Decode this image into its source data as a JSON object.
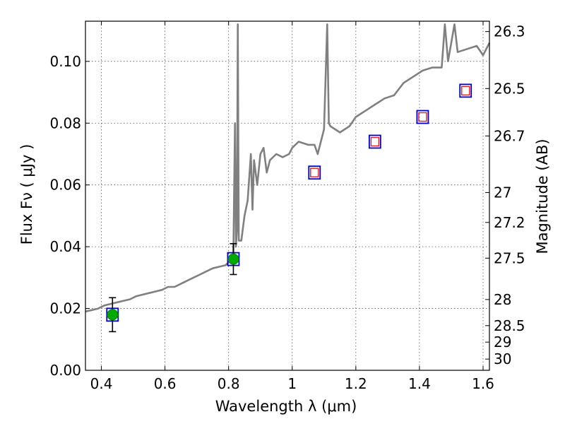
{
  "chart_data": {
    "type": "scatter",
    "title": "",
    "xlabel": "Wavelength  λ (μm)",
    "ylabel": "Flux  Fν  ( μJy )",
    "y2label": "Magnitude (AB)",
    "xlim": [
      0.35,
      1.62
    ],
    "ylim": [
      0.0,
      0.113
    ],
    "grid": true,
    "x_ticks": [
      0.4,
      0.6,
      0.8,
      1.0,
      1.2,
      1.4,
      1.6
    ],
    "x_tick_labels": [
      "0.4",
      "0.6",
      "0.8",
      "1",
      "1.2",
      "1.4",
      "1.6"
    ],
    "y_ticks": [
      0.0,
      0.02,
      0.04,
      0.06,
      0.08,
      0.1
    ],
    "y_tick_labels": [
      "0.00",
      "0.02",
      "0.04",
      "0.06",
      "0.08",
      "0.10"
    ],
    "mag_ticks": [
      26.3,
      26.5,
      26.7,
      27,
      27.2,
      27.5,
      28,
      28.5,
      29,
      30
    ],
    "mag_tick_labels": [
      "26.3",
      "26.5",
      "26.7",
      "27",
      "27.2",
      "27.5",
      "28",
      "28.5",
      "29",
      "30"
    ],
    "series": [
      {
        "kind": "line",
        "color": "#808080",
        "points": [
          [
            0.35,
            0.019
          ],
          [
            0.37,
            0.0195
          ],
          [
            0.39,
            0.02
          ],
          [
            0.41,
            0.021
          ],
          [
            0.43,
            0.0215
          ],
          [
            0.45,
            0.022
          ],
          [
            0.47,
            0.0225
          ],
          [
            0.49,
            0.023
          ],
          [
            0.51,
            0.024
          ],
          [
            0.53,
            0.0245
          ],
          [
            0.55,
            0.025
          ],
          [
            0.57,
            0.0255
          ],
          [
            0.59,
            0.026
          ],
          [
            0.61,
            0.027
          ],
          [
            0.63,
            0.027
          ],
          [
            0.65,
            0.028
          ],
          [
            0.67,
            0.029
          ],
          [
            0.69,
            0.03
          ],
          [
            0.71,
            0.031
          ],
          [
            0.73,
            0.032
          ],
          [
            0.75,
            0.033
          ],
          [
            0.77,
            0.0335
          ],
          [
            0.79,
            0.034
          ],
          [
            0.8,
            0.035
          ],
          [
            0.81,
            0.036
          ],
          [
            0.815,
            0.037
          ],
          [
            0.82,
            0.08
          ],
          [
            0.823,
            0.04
          ],
          [
            0.826,
            0.045
          ],
          [
            0.829,
            0.112
          ],
          [
            0.832,
            0.042
          ],
          [
            0.84,
            0.042
          ],
          [
            0.85,
            0.05
          ],
          [
            0.86,
            0.055
          ],
          [
            0.87,
            0.07
          ],
          [
            0.875,
            0.052
          ],
          [
            0.88,
            0.068
          ],
          [
            0.89,
            0.06
          ],
          [
            0.9,
            0.07
          ],
          [
            0.91,
            0.072
          ],
          [
            0.92,
            0.064
          ],
          [
            0.93,
            0.068
          ],
          [
            0.95,
            0.07
          ],
          [
            0.97,
            0.069
          ],
          [
            0.99,
            0.07
          ],
          [
            1.0,
            0.072
          ],
          [
            1.02,
            0.074
          ],
          [
            1.05,
            0.073
          ],
          [
            1.07,
            0.073
          ],
          [
            1.08,
            0.07
          ],
          [
            1.1,
            0.078
          ],
          [
            1.11,
            0.112
          ],
          [
            1.115,
            0.08
          ],
          [
            1.12,
            0.079
          ],
          [
            1.15,
            0.077
          ],
          [
            1.18,
            0.079
          ],
          [
            1.2,
            0.082
          ],
          [
            1.23,
            0.084
          ],
          [
            1.26,
            0.086
          ],
          [
            1.29,
            0.088
          ],
          [
            1.32,
            0.089
          ],
          [
            1.35,
            0.093
          ],
          [
            1.38,
            0.095
          ],
          [
            1.41,
            0.097
          ],
          [
            1.44,
            0.098
          ],
          [
            1.47,
            0.098
          ],
          [
            1.48,
            0.112
          ],
          [
            1.49,
            0.1
          ],
          [
            1.51,
            0.112
          ],
          [
            1.52,
            0.103
          ],
          [
            1.55,
            0.104
          ],
          [
            1.58,
            0.105
          ],
          [
            1.6,
            0.102
          ],
          [
            1.62,
            0.106
          ]
        ]
      },
      {
        "kind": "model_squares",
        "color": "#0000cc",
        "points": [
          [
            0.435,
            0.018
          ],
          [
            0.815,
            0.036
          ],
          [
            1.07,
            0.064
          ],
          [
            1.26,
            0.074
          ],
          [
            1.41,
            0.082
          ],
          [
            1.545,
            0.0905
          ]
        ]
      },
      {
        "kind": "observed_points",
        "color": "#00aa00",
        "points": [
          [
            0.435,
            0.018
          ],
          [
            0.815,
            0.036
          ]
        ],
        "errors": [
          0.0055,
          0.005
        ]
      },
      {
        "kind": "upper_limit_squares",
        "color": "#dd2222",
        "points": [
          [
            1.07,
            0.064
          ],
          [
            1.26,
            0.074
          ],
          [
            1.41,
            0.082
          ],
          [
            1.545,
            0.0905
          ]
        ]
      }
    ]
  }
}
